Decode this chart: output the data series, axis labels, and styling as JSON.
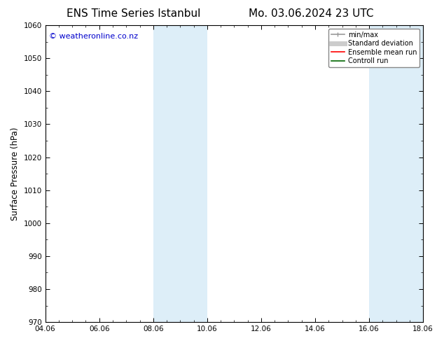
{
  "title_left": "ENS Time Series Istanbul",
  "title_right": "Mo. 03.06.2024 23 UTC",
  "ylabel": "Surface Pressure (hPa)",
  "ylim": [
    970,
    1060
  ],
  "yticks": [
    970,
    980,
    990,
    1000,
    1010,
    1020,
    1030,
    1040,
    1050,
    1060
  ],
  "xlabel": "",
  "xtick_labels": [
    "04.06",
    "06.06",
    "08.06",
    "10.06",
    "12.06",
    "14.06",
    "16.06",
    "18.06"
  ],
  "xtick_positions": [
    0,
    2,
    4,
    6,
    8,
    10,
    12,
    14
  ],
  "xlim": [
    0,
    14
  ],
  "shaded_bands": [
    {
      "x_start": 4,
      "x_end": 6,
      "color": "#ddeef8"
    },
    {
      "x_start": 12,
      "x_end": 14,
      "color": "#ddeef8"
    }
  ],
  "watermark_text": "© weatheronline.co.nz",
  "watermark_color": "#0000cc",
  "watermark_fontsize": 8,
  "legend_entries": [
    {
      "label": "min/max",
      "color": "#999999",
      "lw": 1.2,
      "ls": "-"
    },
    {
      "label": "Standard deviation",
      "color": "#cccccc",
      "lw": 5,
      "ls": "-"
    },
    {
      "label": "Ensemble mean run",
      "color": "#ff0000",
      "lw": 1.2,
      "ls": "-"
    },
    {
      "label": "Controll run",
      "color": "#006600",
      "lw": 1.2,
      "ls": "-"
    }
  ],
  "bg_color": "#ffffff",
  "title_fontsize": 11,
  "tick_fontsize": 7.5,
  "ylabel_fontsize": 8.5
}
